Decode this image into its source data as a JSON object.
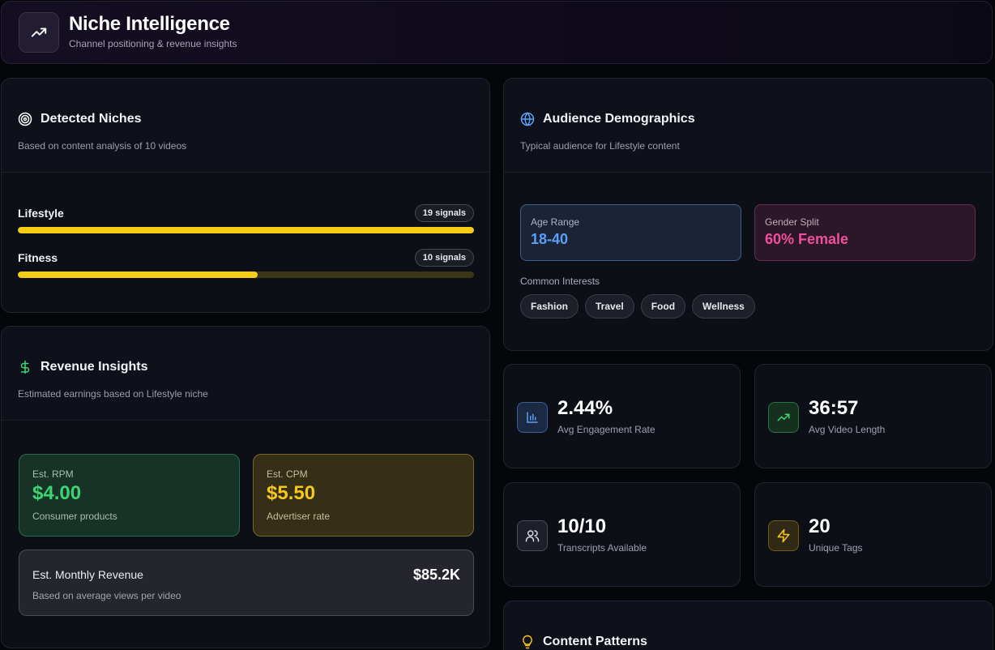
{
  "header": {
    "title": "Niche Intelligence",
    "subtitle": "Channel positioning & revenue insights",
    "icon": "trending-up-icon"
  },
  "niches": {
    "title": "Detected Niches",
    "subtitle": "Based on content analysis of 10 videos",
    "icon": "target-icon",
    "items": [
      {
        "name": "Lifestyle",
        "signals": "19 signals",
        "fill_fraction": 1.0
      },
      {
        "name": "Fitness",
        "signals": "10 signals",
        "fill_fraction": 0.526
      }
    ]
  },
  "revenue": {
    "title": "Revenue Insights",
    "subtitle": "Estimated earnings based on Lifestyle niche",
    "icon": "dollar-icon",
    "rpm": {
      "label": "Est. RPM",
      "value": "$4.00",
      "note": "Consumer products"
    },
    "cpm": {
      "label": "Est. CPM",
      "value": "$5.50",
      "note": "Advertiser rate"
    },
    "monthly": {
      "title": "Est. Monthly Revenue",
      "note": "Based on average views per video",
      "value": "$85.2K"
    }
  },
  "audience": {
    "title": "Audience Demographics",
    "subtitle": "Typical audience for Lifestyle content",
    "icon": "globe-icon",
    "age": {
      "label": "Age Range",
      "value": "18-40"
    },
    "gender": {
      "label": "Gender Split",
      "value": "60% Female"
    },
    "interests_label": "Common Interests",
    "interests": [
      "Fashion",
      "Travel",
      "Food",
      "Wellness"
    ]
  },
  "stats": {
    "engagement": {
      "value": "2.44%",
      "label": "Avg Engagement Rate",
      "icon": "bar-chart-icon"
    },
    "video_length": {
      "value": "36:57",
      "label": "Avg Video Length",
      "icon": "trending-up-icon"
    },
    "transcripts": {
      "value": "10/10",
      "label": "Transcripts Available",
      "icon": "users-icon"
    },
    "tags": {
      "value": "20",
      "label": "Unique Tags",
      "icon": "lightning-icon"
    }
  },
  "patterns": {
    "title": "Content Patterns",
    "icon": "lightbulb-icon"
  },
  "colors": {
    "accent_yellow": "#f5cd14",
    "accent_green": "#3ed476",
    "accent_blue": "#5aa0f6",
    "accent_pink": "#f0509b"
  }
}
